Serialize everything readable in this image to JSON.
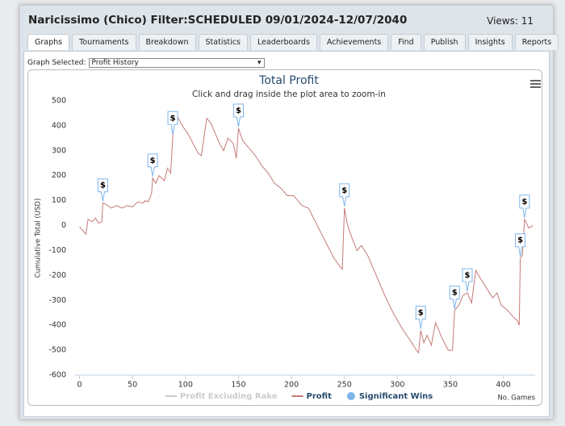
{
  "header": {
    "title": "Naricissimo (Chico) Filter:SCHEDULED 09/01/2024-12/07/2040",
    "views": "Views: 11"
  },
  "tabs": [
    "Graphs",
    "Tournaments",
    "Breakdown",
    "Statistics",
    "Leaderboards",
    "Achievements",
    "Find",
    "Publish",
    "Insights",
    "Reports"
  ],
  "graph_selector": {
    "label": "Graph Selected:",
    "value": "Profit History"
  },
  "chart_data": {
    "type": "line",
    "title": "Total Profit",
    "subtitle": "Click and drag inside the plot area to zoom-in",
    "y_label": "Cumulative Total (USD)",
    "x_label": "No. Games",
    "xlim": [
      -5,
      430
    ],
    "xticks": [
      0,
      50,
      100,
      150,
      200,
      250,
      300,
      350,
      400
    ],
    "ylim": [
      -600,
      500
    ],
    "yticks": [
      -600,
      -500,
      -400,
      -300,
      -200,
      -100,
      0,
      100,
      200,
      300,
      400,
      500
    ],
    "x": [
      0,
      3,
      6,
      8,
      12,
      15,
      18,
      21,
      22,
      25,
      30,
      35,
      40,
      45,
      50,
      55,
      60,
      62,
      65,
      68,
      69,
      72,
      75,
      80,
      83,
      86,
      88,
      90,
      92,
      97,
      102,
      107,
      112,
      115,
      120,
      124,
      128,
      132,
      136,
      140,
      145,
      148,
      150,
      154,
      160,
      166,
      172,
      178,
      184,
      190,
      196,
      202,
      210,
      216,
      222,
      228,
      234,
      240,
      245,
      248,
      250,
      253,
      258,
      262,
      266,
      272,
      280,
      288,
      296,
      304,
      312,
      318,
      320,
      322,
      325,
      328,
      332,
      336,
      342,
      348,
      352,
      354,
      358,
      362,
      366,
      370,
      374,
      378,
      384,
      390,
      394,
      398,
      404,
      410,
      413,
      415,
      416,
      418,
      420,
      424,
      428
    ],
    "series": [
      {
        "name": "Profit Excluding Rake",
        "color": "#cccccc",
        "visible": false
      },
      {
        "name": "Profit",
        "color": "#c47a78",
        "visible": true,
        "values": [
          -5,
          -20,
          -35,
          25,
          15,
          30,
          10,
          15,
          90,
          85,
          70,
          80,
          70,
          80,
          75,
          95,
          90,
          100,
          95,
          130,
          190,
          170,
          200,
          180,
          230,
          210,
          360,
          450,
          440,
          400,
          370,
          330,
          290,
          280,
          430,
          410,
          370,
          330,
          300,
          350,
          330,
          270,
          390,
          340,
          310,
          280,
          240,
          210,
          170,
          150,
          120,
          120,
          80,
          70,
          20,
          -30,
          -80,
          -130,
          -160,
          -175,
          70,
          0,
          -60,
          -100,
          -80,
          -120,
          -200,
          -280,
          -350,
          -410,
          -460,
          -500,
          -510,
          -420,
          -470,
          -440,
          -480,
          -390,
          -450,
          -500,
          -500,
          -340,
          -320,
          -280,
          -270,
          -310,
          -180,
          -210,
          -250,
          -290,
          -270,
          -320,
          -340,
          -370,
          -380,
          -400,
          -130,
          -120,
          25,
          -10,
          0
        ]
      }
    ],
    "markers": {
      "name": "Significant Wins",
      "color": "#7cb5ec",
      "x": [
        22,
        69,
        88,
        150,
        250,
        322,
        354,
        366,
        416,
        420
      ],
      "y": [
        90,
        190,
        360,
        390,
        70,
        -420,
        -340,
        -270,
        -130,
        25
      ],
      "labels": [
        "$",
        "$",
        "$",
        "$",
        "$",
        "$",
        "$",
        "$",
        "$",
        "$"
      ]
    },
    "grid": false
  }
}
